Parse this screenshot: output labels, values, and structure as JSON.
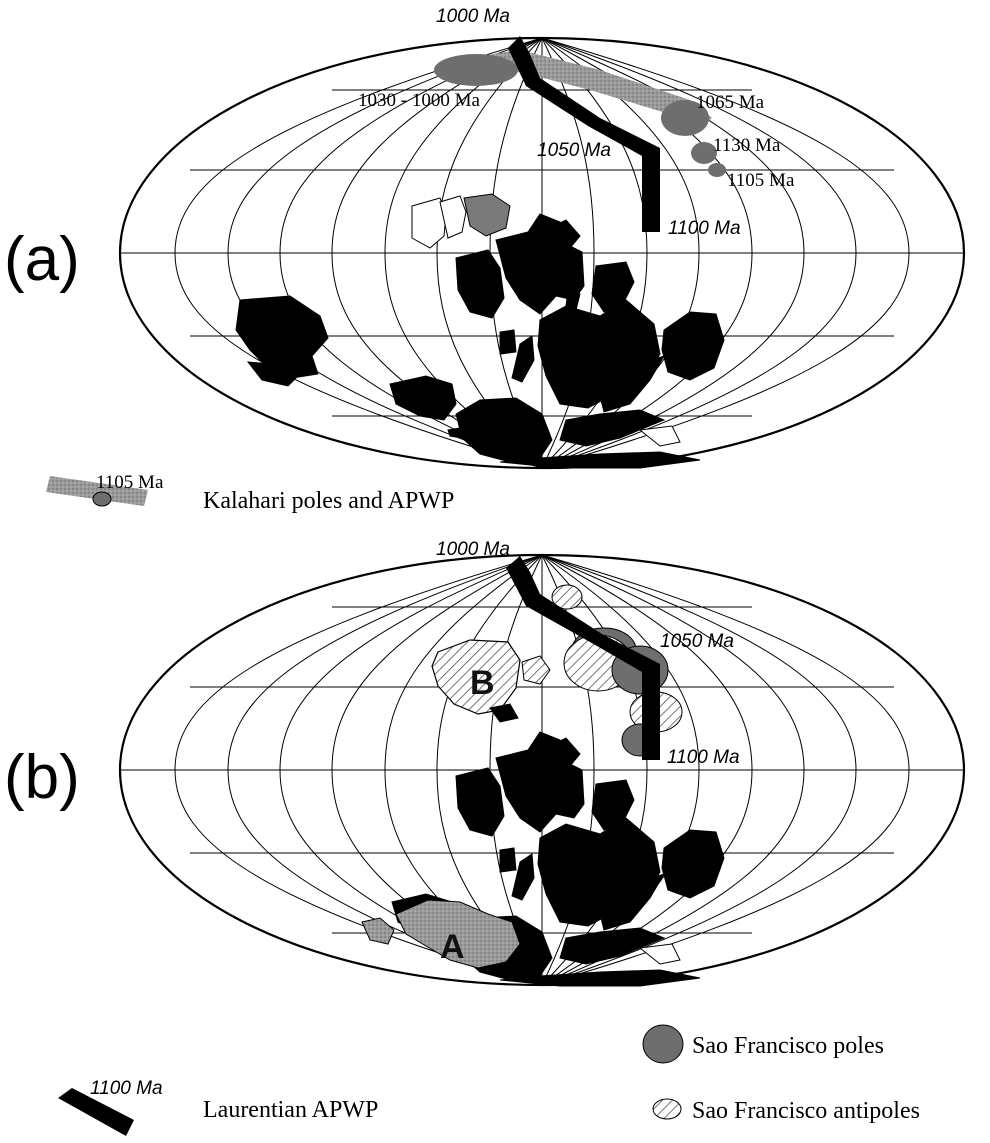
{
  "panels": {
    "a": {
      "letter": "(a)",
      "laurentia_age_top": "1000 Ma",
      "laurentia_age_mid": "1050 Ma",
      "laurentia_age_end": "1100 Ma",
      "kalahari_labels": {
        "range": "1030 - 1000 Ma",
        "age_1065": "1065 Ma",
        "age_1130": "1130 Ma",
        "age_1105": "1105 Ma"
      }
    },
    "b": {
      "letter": "(b)",
      "laurentia_age_top": "1000 Ma",
      "laurentia_age_mid": "1050 Ma",
      "laurentia_age_end": "1100 Ma",
      "block_a": "A",
      "block_b": "B"
    }
  },
  "legend": {
    "kalahari_sample_age": "1105 Ma",
    "kalahari_text": "Kalahari poles and APWP",
    "laurentia_sample_age": "1100 Ma",
    "laurentia_text": "Laurentian APWP",
    "sf_poles_text": "Sao Francisco poles",
    "sf_antipoles_text": "Sao Francisco antipoles"
  },
  "colors": {
    "land": "#000000",
    "kalahari_apwp": "#8c8c8c",
    "pole_fill": "#6e6e6e",
    "hatch": "#555555",
    "block_a_fill": "#7a7a7a"
  }
}
